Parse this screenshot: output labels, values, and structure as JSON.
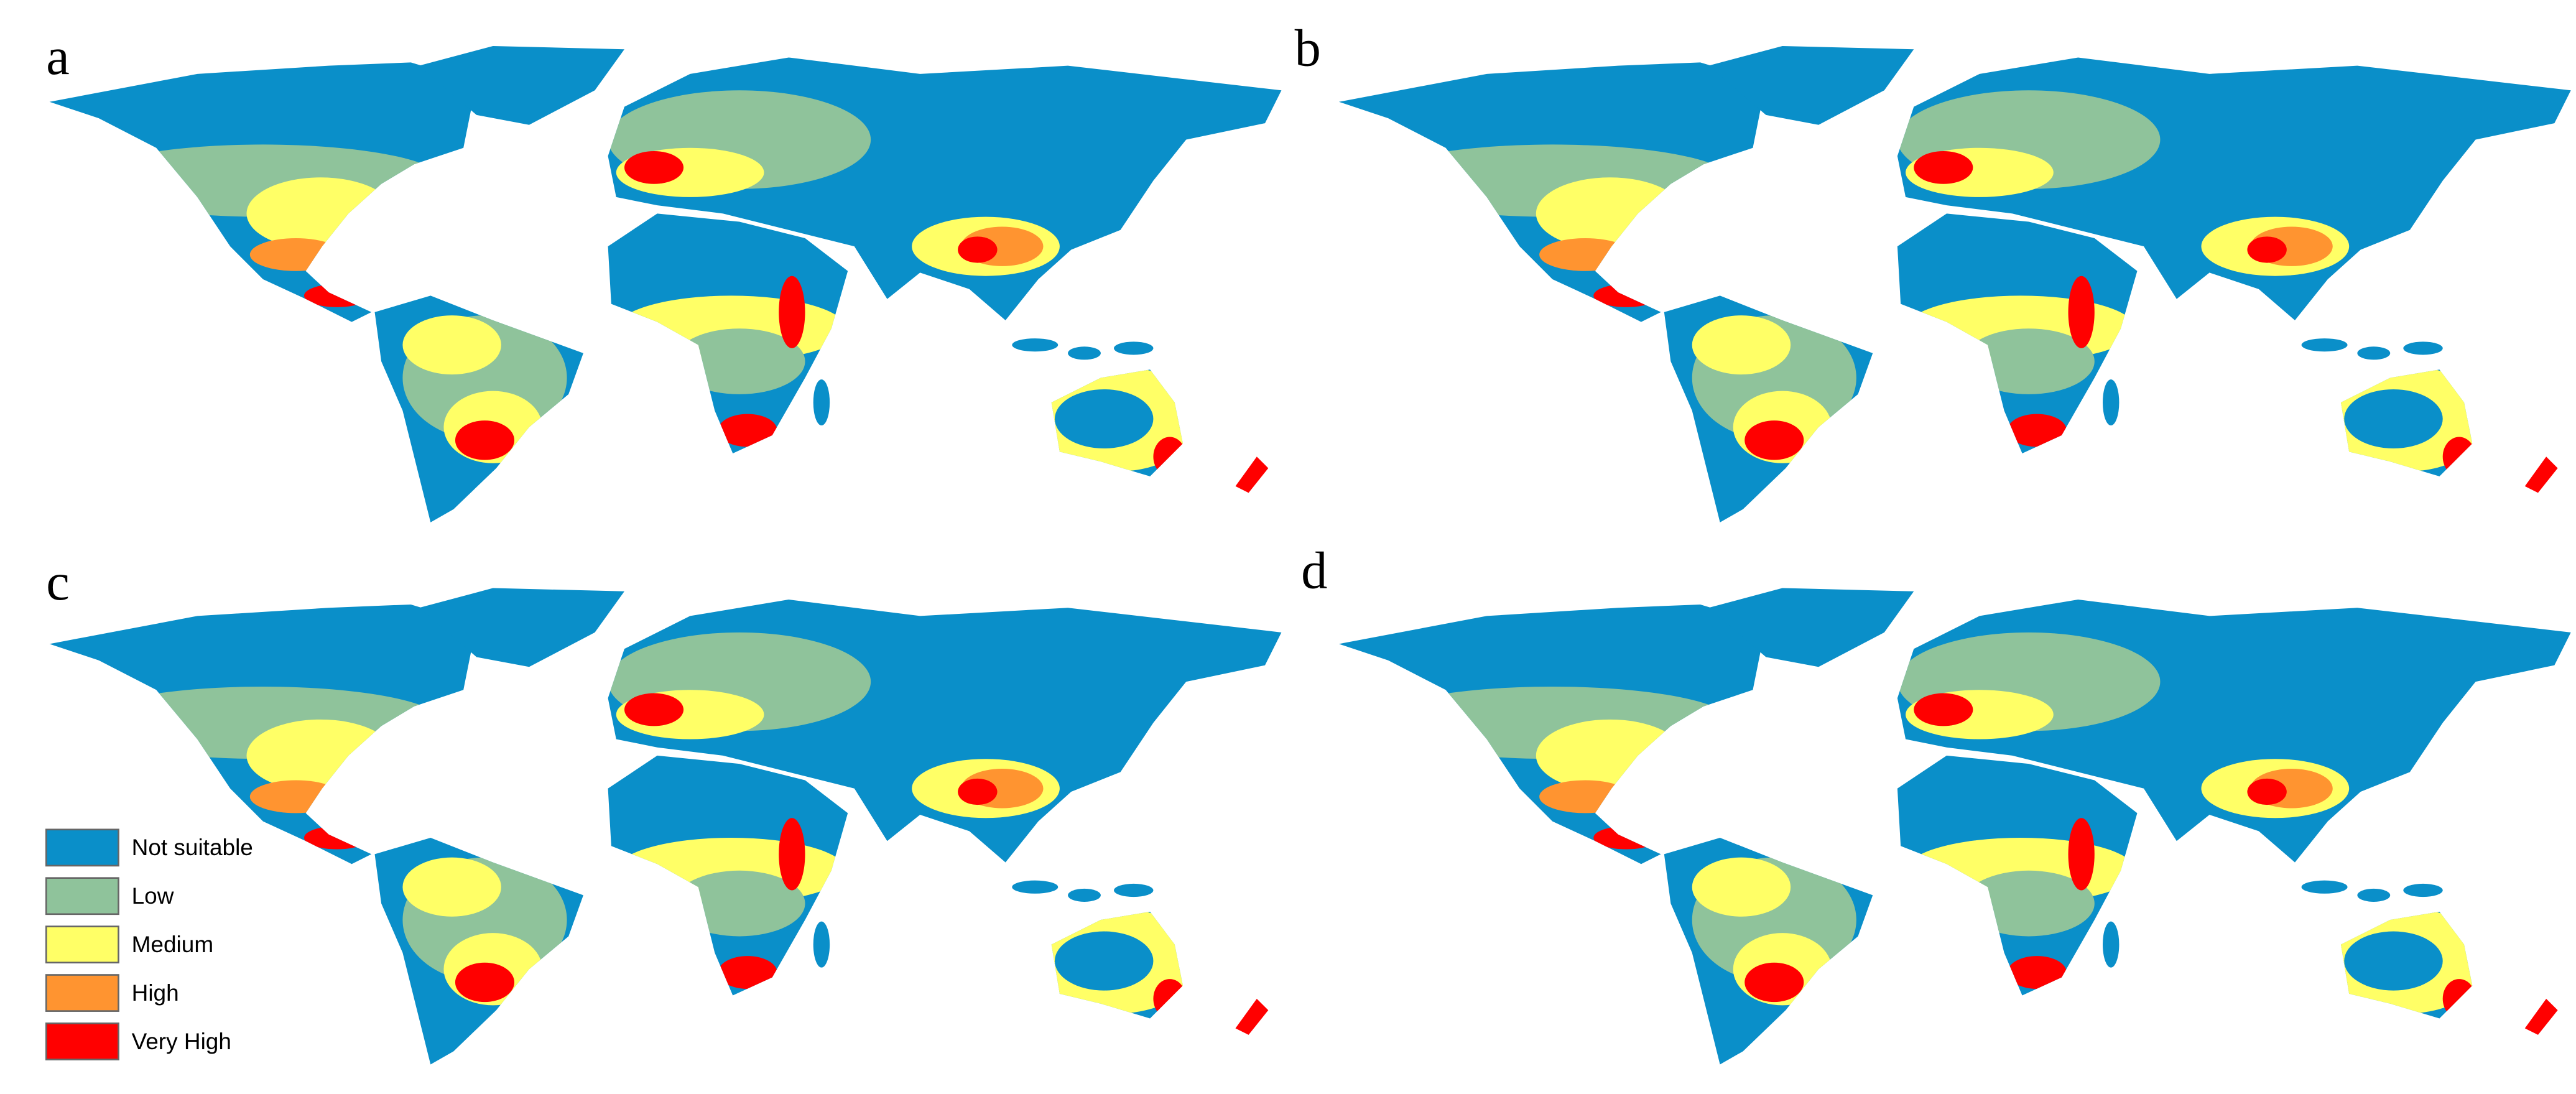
{
  "panels": [
    {
      "label": "a"
    },
    {
      "label": "b"
    },
    {
      "label": "c"
    },
    {
      "label": "d"
    }
  ],
  "legend": {
    "items": [
      {
        "label": "Not suitable",
        "color": "#0a8fc9"
      },
      {
        "label": "Low",
        "color": "#8fc39b"
      },
      {
        "label": "Medium",
        "color": "#ffff66"
      },
      {
        "label": "High",
        "color": "#ff9430"
      },
      {
        "label": "Very High",
        "color": "#ff0000"
      }
    ]
  }
}
